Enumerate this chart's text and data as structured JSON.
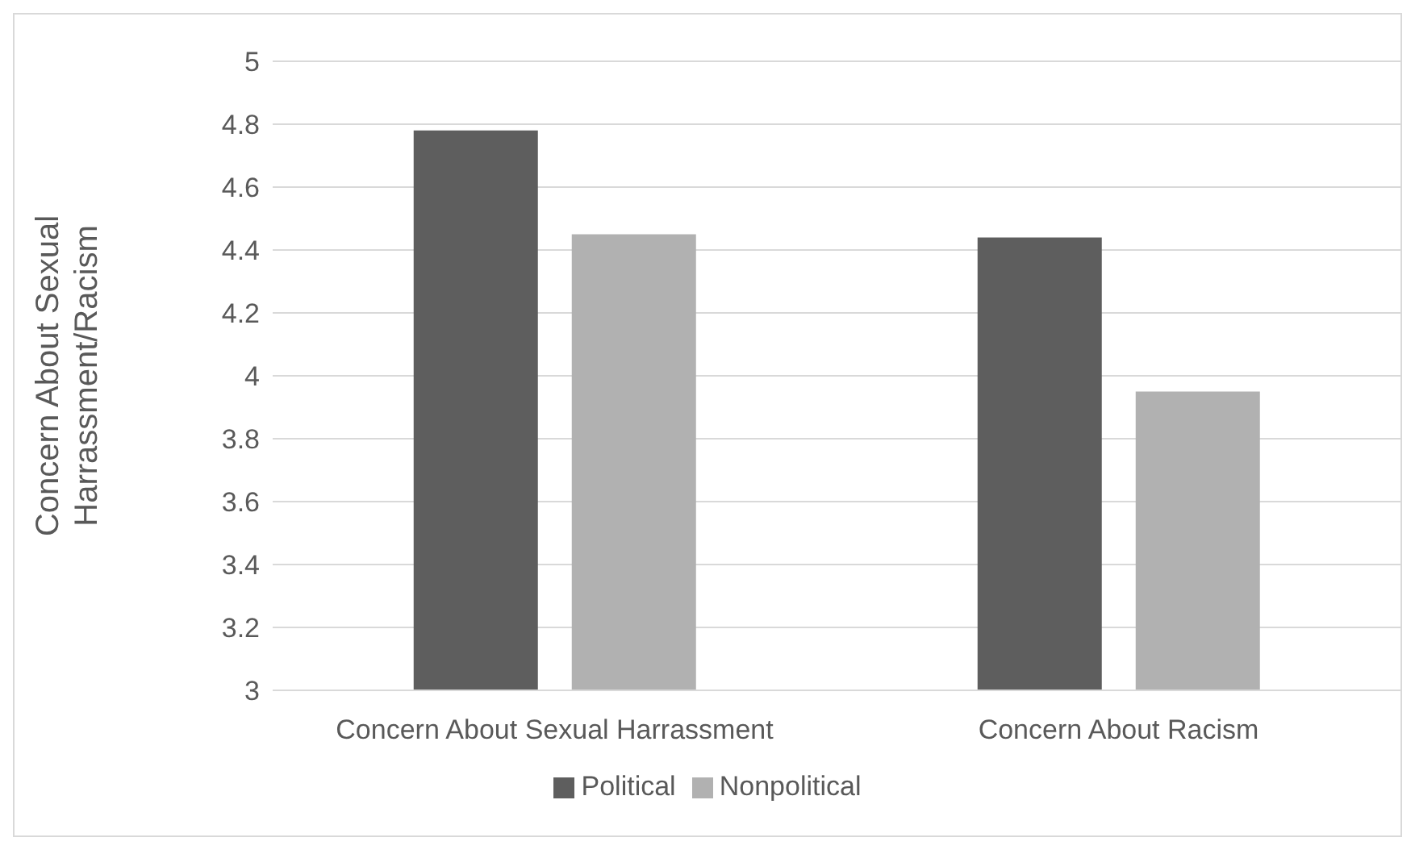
{
  "chart_data": {
    "type": "bar",
    "ylabel": "Concern About Sexual Harrassment/Racism",
    "categories": [
      "Concern About Sexual Harrassment",
      "Concern About Racism"
    ],
    "series": [
      {
        "name": "Political",
        "color": "#5e5e5e",
        "values": [
          4.78,
          4.44
        ]
      },
      {
        "name": "Nonpolitical",
        "color": "#b1b1b1",
        "values": [
          4.45,
          3.95
        ]
      }
    ],
    "ylim": [
      3,
      5
    ],
    "yticks": [
      3,
      3.2,
      3.4,
      3.6,
      3.8,
      4,
      4.2,
      4.4,
      4.6,
      4.8,
      5
    ],
    "grid": "y",
    "legend": "bottom"
  }
}
